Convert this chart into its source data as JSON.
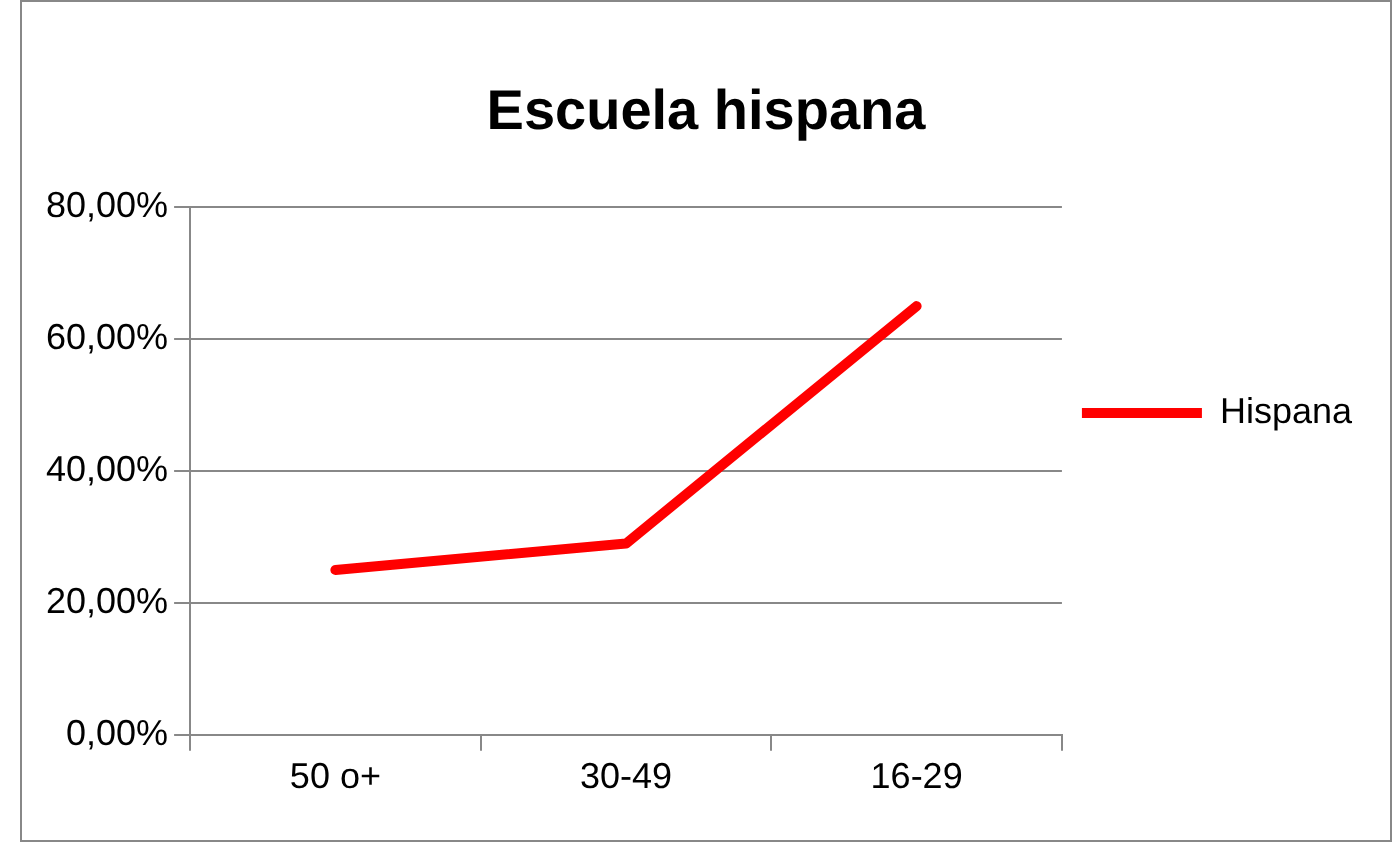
{
  "chart_data": {
    "type": "line",
    "title": "Escuela hispana",
    "categories": [
      "50 o+",
      "30-49",
      "16-29"
    ],
    "series": [
      {
        "name": "Hispana",
        "color": "#ff0000",
        "values": [
          25,
          29,
          65
        ]
      }
    ],
    "ylim": [
      0,
      80
    ],
    "yticks": [
      {
        "value": 0,
        "label": "0,00%"
      },
      {
        "value": 20,
        "label": "20,00%"
      },
      {
        "value": 40,
        "label": "40,00%"
      },
      {
        "value": 60,
        "label": "60,00%"
      },
      {
        "value": 80,
        "label": "80,00%"
      }
    ],
    "grid": "y",
    "legend": "right",
    "marker": "none"
  }
}
